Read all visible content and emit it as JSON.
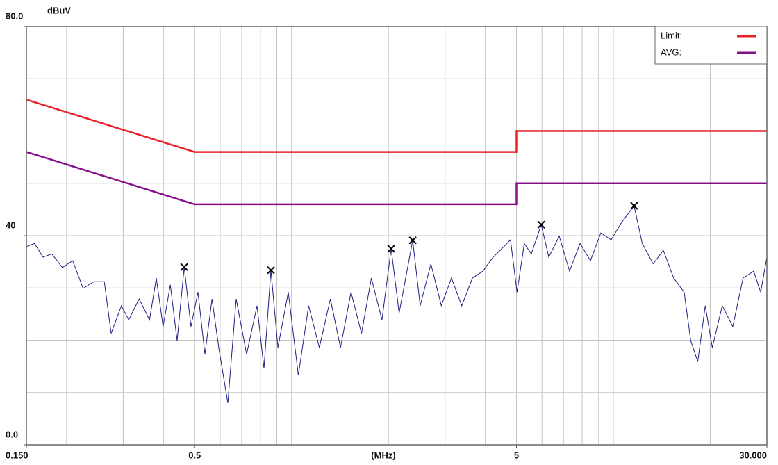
{
  "chart_data": {
    "type": "line",
    "y_unit": "dBuV",
    "x_label": "(MHz)",
    "xscale": "log",
    "xlim": [
      0.15,
      30
    ],
    "xticks": [
      {
        "value": 0.15,
        "label": "0.150"
      },
      0.5,
      5,
      {
        "value": 30,
        "label": "30.000"
      }
    ],
    "xgrid": [
      0.2,
      0.3,
      0.4,
      0.5,
      0.6,
      0.7,
      0.8,
      0.9,
      1,
      2,
      3,
      4,
      5,
      6,
      7,
      8,
      9,
      10,
      20
    ],
    "ylim": [
      0,
      80
    ],
    "yticks": [
      {
        "value": 0,
        "label": "0.0"
      },
      40,
      {
        "value": 80,
        "label": "80.0"
      }
    ],
    "ygrid": [
      10,
      20,
      30,
      40,
      50,
      60,
      70
    ],
    "grid": true,
    "legend": "top-right",
    "series": [
      {
        "name": "Limit:",
        "color": "#e8202a",
        "x": [
          0.15,
          0.5,
          5,
          5,
          30
        ],
        "values": [
          66,
          56,
          56,
          60,
          60
        ]
      },
      {
        "name": "AVG:",
        "color": "#85108a",
        "x": [
          0.15,
          0.5,
          5,
          5,
          30
        ],
        "values": [
          56,
          46,
          46,
          50,
          50
        ]
      }
    ],
    "trace": {
      "color": "#1c1f80",
      "x": [
        0.15,
        0.159,
        0.169,
        0.18,
        0.194,
        0.209,
        0.225,
        0.243,
        0.262,
        0.275,
        0.296,
        0.312,
        0.336,
        0.362,
        0.38,
        0.399,
        0.42,
        0.441,
        0.464,
        0.487,
        0.512,
        0.538,
        0.566,
        0.594,
        0.634,
        0.673,
        0.725,
        0.781,
        0.821,
        0.863,
        0.907,
        0.977,
        1.05,
        1.13,
        1.22,
        1.32,
        1.42,
        1.53,
        1.65,
        1.77,
        1.91,
        2.04,
        2.16,
        2.38,
        2.51,
        2.71,
        2.92,
        3.14,
        3.38,
        3.65,
        3.93,
        4.23,
        4.45,
        4.79,
        5.02,
        5.29,
        5.56,
        5.97,
        6.3,
        6.79,
        7.31,
        7.88,
        8.49,
        9.14,
        9.85,
        10.6,
        11.6,
        12.3,
        13.3,
        14.3,
        15.4,
        16.6,
        17.4,
        18.3,
        19.3,
        20.3,
        21.8,
        23.5,
        25.3,
        27.3,
        28.7,
        30
      ],
      "values": [
        37.9,
        38.5,
        35.9,
        36.5,
        33.9,
        35.2,
        29.9,
        31.2,
        31.2,
        21.3,
        26.6,
        23.9,
        27.9,
        23.9,
        31.9,
        22.6,
        30.6,
        19.9,
        34.0,
        22.6,
        29.2,
        17.3,
        27.9,
        18.6,
        8.0,
        27.9,
        17.3,
        26.6,
        14.6,
        33.4,
        18.6,
        29.2,
        13.3,
        26.6,
        18.6,
        27.9,
        18.6,
        29.2,
        21.3,
        31.9,
        23.9,
        37.5,
        25.2,
        39.1,
        26.6,
        34.6,
        26.6,
        31.9,
        26.6,
        31.9,
        33.2,
        35.9,
        37.2,
        39.2,
        29.2,
        38.5,
        36.5,
        42.1,
        35.9,
        39.9,
        33.2,
        38.5,
        35.2,
        40.5,
        39.2,
        42.5,
        45.7,
        38.5,
        34.6,
        37.2,
        31.9,
        29.2,
        19.9,
        15.9,
        26.6,
        18.6,
        26.6,
        22.6,
        31.9,
        33.2,
        29.2,
        35.9
      ]
    },
    "peaks": {
      "x": [
        0.464,
        0.863,
        2.04,
        2.38,
        5.97,
        11.6
      ],
      "values": [
        34.0,
        33.4,
        37.5,
        39.1,
        42.1,
        45.7
      ]
    }
  }
}
